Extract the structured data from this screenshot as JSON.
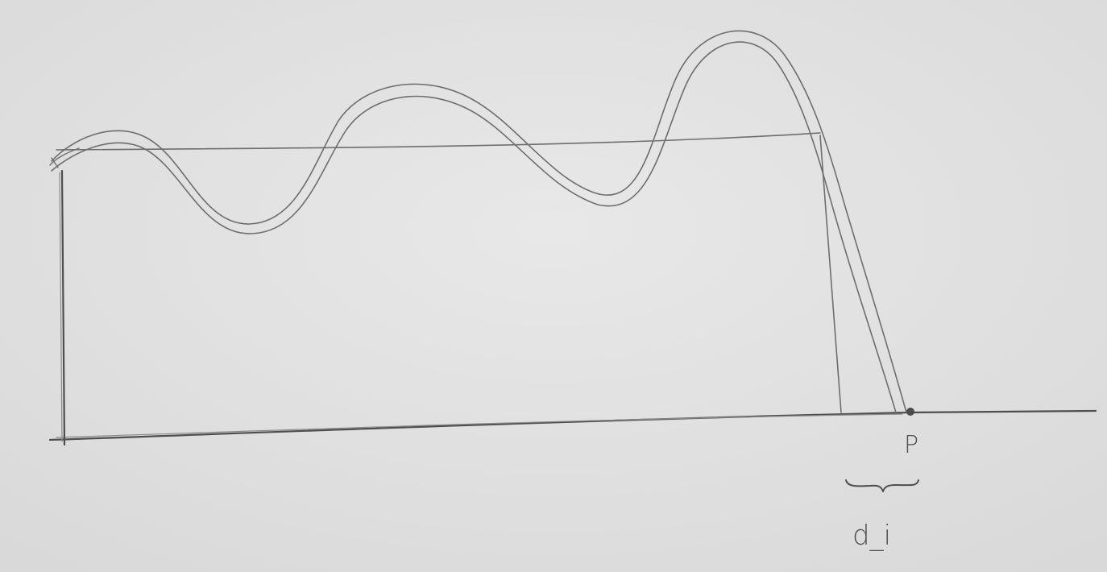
{
  "labels": {
    "point": "P",
    "distance": "d_i"
  },
  "colors": {
    "paper": "#e3e3e3",
    "pencil": "#6e6e6e",
    "pencil_dark": "#4e4e4e"
  }
}
